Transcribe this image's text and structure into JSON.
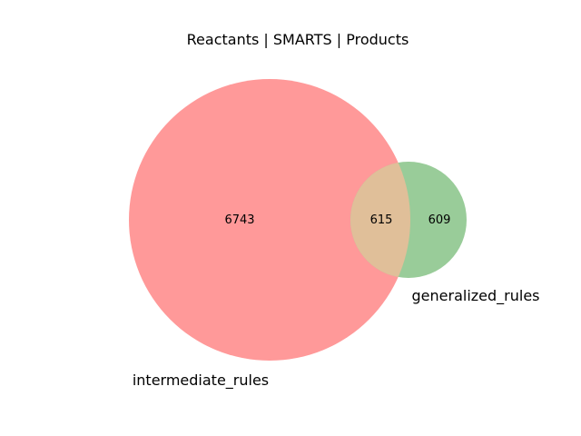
{
  "title": "Reactants | SMARTS | Products",
  "sets": {
    "left": {
      "label": "intermediate_rules",
      "only_count": "6743",
      "color": "#ff9999"
    },
    "right": {
      "label": "generalized_rules",
      "only_count": "609",
      "color": "#99cc99"
    }
  },
  "intersection": {
    "count": "615",
    "color": "#e0bf99"
  }
}
